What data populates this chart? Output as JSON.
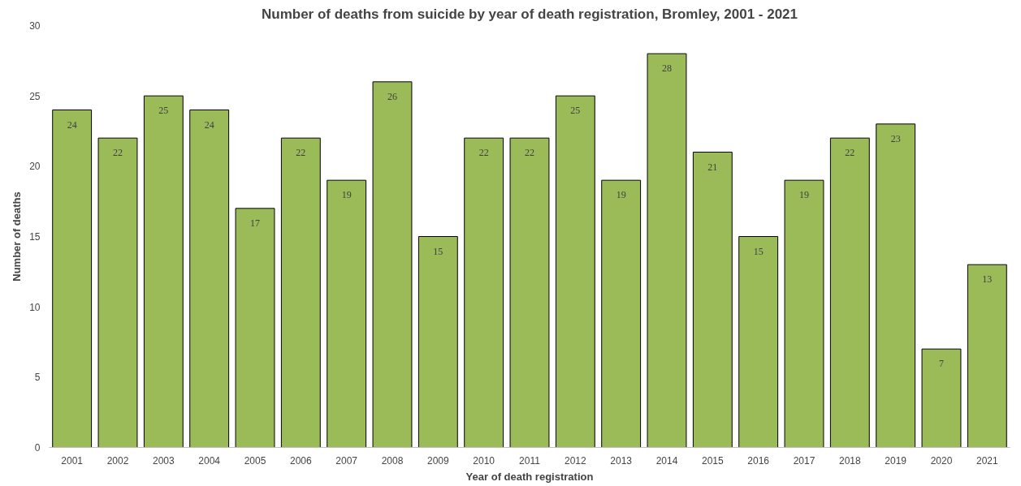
{
  "chart_data": {
    "type": "bar",
    "title": "Number of deaths from suicide by year of death registration, Bromley, 2001 - 2021",
    "xlabel": "Year of death registration",
    "ylabel": "Number of deaths",
    "categories": [
      "2001",
      "2002",
      "2003",
      "2004",
      "2005",
      "2006",
      "2007",
      "2008",
      "2009",
      "2010",
      "2011",
      "2012",
      "2013",
      "2014",
      "2015",
      "2016",
      "2017",
      "2018",
      "2019",
      "2020",
      "2021"
    ],
    "values": [
      24,
      22,
      25,
      24,
      17,
      22,
      19,
      26,
      15,
      22,
      22,
      25,
      19,
      28,
      21,
      15,
      19,
      22,
      23,
      7,
      13
    ],
    "color": "#9bbb59",
    "ylim": [
      0,
      30
    ],
    "yticks": [
      0,
      5,
      10,
      15,
      20,
      25,
      30
    ],
    "data_labels": true,
    "grid": false,
    "legend": false
  }
}
